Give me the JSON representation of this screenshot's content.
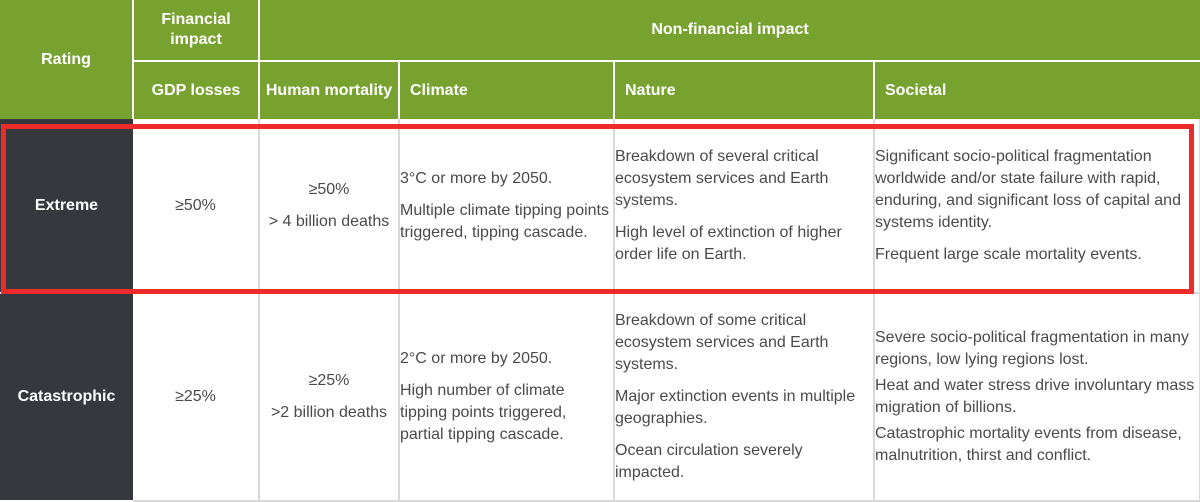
{
  "header": {
    "rating": "Rating",
    "financial_impact": "Financial impact",
    "non_financial_impact": "Non-financial impact",
    "gdp_losses": "GDP losses",
    "human_mortality": "Human mortality",
    "climate": "Climate",
    "nature": "Nature",
    "societal": "Societal"
  },
  "rows": [
    {
      "rating": "Extreme",
      "gdp": "≥50%",
      "mortality": [
        "≥50%",
        "> 4 billion deaths"
      ],
      "climate": [
        "3°C or more by 2050.",
        "Multiple climate tipping points triggered, tipping cascade."
      ],
      "nature": [
        "Breakdown of several critical ecosystem services and Earth systems.",
        "High level of extinction of higher order life on Earth."
      ],
      "societal": [
        "Significant socio-political fragmentation worldwide and/or state failure with rapid, enduring, and significant loss of capital and systems identity.",
        "Frequent large scale mortality events."
      ]
    },
    {
      "rating": "Catastrophic",
      "gdp": "≥25%",
      "mortality": [
        "≥25%",
        ">2 billion deaths"
      ],
      "climate": [
        "2°C or more by 2050.",
        "High number of climate tipping points triggered, partial tipping cascade."
      ],
      "nature": [
        "Breakdown of some critical ecosystem services and Earth systems.",
        "Major extinction events in multiple geographies.",
        "Ocean circulation severely impacted."
      ],
      "societal": [
        "Severe socio-political fragmentation in many regions, low lying regions lost.",
        "Heat and water stress drive involuntary mass migration of billions.",
        "Catastrophic mortality events from disease, malnutrition, thirst and conflict."
      ]
    }
  ],
  "colors": {
    "header_green": "#78a22f",
    "rating_dark": "#35393e",
    "highlight_red": "#ee2b2b"
  }
}
